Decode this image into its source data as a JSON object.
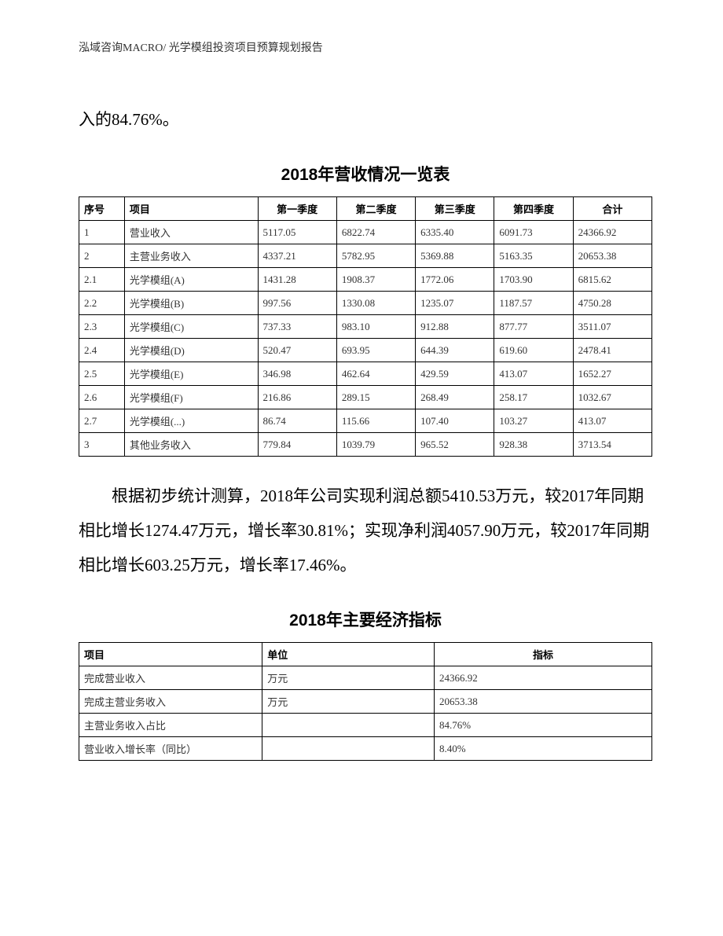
{
  "header": "泓域咨询MACRO/    光学模组投资项目预算规划报告",
  "paragraph1": "入的84.76%。",
  "table1_title": "2018年营收情况一览表",
  "table1": {
    "headers": [
      "序号",
      "项目",
      "第一季度",
      "第二季度",
      "第三季度",
      "第四季度",
      "合计"
    ],
    "rows": [
      [
        "1",
        "营业收入",
        "5117.05",
        "6822.74",
        "6335.40",
        "6091.73",
        "24366.92"
      ],
      [
        "2",
        "主营业务收入",
        "4337.21",
        "5782.95",
        "5369.88",
        "5163.35",
        "20653.38"
      ],
      [
        "2.1",
        "光学模组(A)",
        "1431.28",
        "1908.37",
        "1772.06",
        "1703.90",
        "6815.62"
      ],
      [
        "2.2",
        "光学模组(B)",
        "997.56",
        "1330.08",
        "1235.07",
        "1187.57",
        "4750.28"
      ],
      [
        "2.3",
        "光学模组(C)",
        "737.33",
        "983.10",
        "912.88",
        "877.77",
        "3511.07"
      ],
      [
        "2.4",
        "光学模组(D)",
        "520.47",
        "693.95",
        "644.39",
        "619.60",
        "2478.41"
      ],
      [
        "2.5",
        "光学模组(E)",
        "346.98",
        "462.64",
        "429.59",
        "413.07",
        "1652.27"
      ],
      [
        "2.6",
        "光学模组(F)",
        "216.86",
        "289.15",
        "268.49",
        "258.17",
        "1032.67"
      ],
      [
        "2.7",
        "光学模组(...)",
        "86.74",
        "115.66",
        "107.40",
        "103.27",
        "413.07"
      ],
      [
        "3",
        "其他业务收入",
        "779.84",
        "1039.79",
        "965.52",
        "928.38",
        "3713.54"
      ]
    ]
  },
  "paragraph2": "根据初步统计测算，2018年公司实现利润总额5410.53万元，较2017年同期相比增长1274.47万元，增长率30.81%；实现净利润4057.90万元，较2017年同期相比增长603.25万元，增长率17.46%。",
  "table2_title": "2018年主要经济指标",
  "table2": {
    "headers": [
      "项目",
      "单位",
      "指标"
    ],
    "rows": [
      [
        "完成营业收入",
        "万元",
        "24366.92"
      ],
      [
        "完成主营业务收入",
        "万元",
        "20653.38"
      ],
      [
        "主营业务收入占比",
        "",
        "84.76%"
      ],
      [
        "营业收入增长率（同比）",
        "",
        "8.40%"
      ]
    ]
  }
}
